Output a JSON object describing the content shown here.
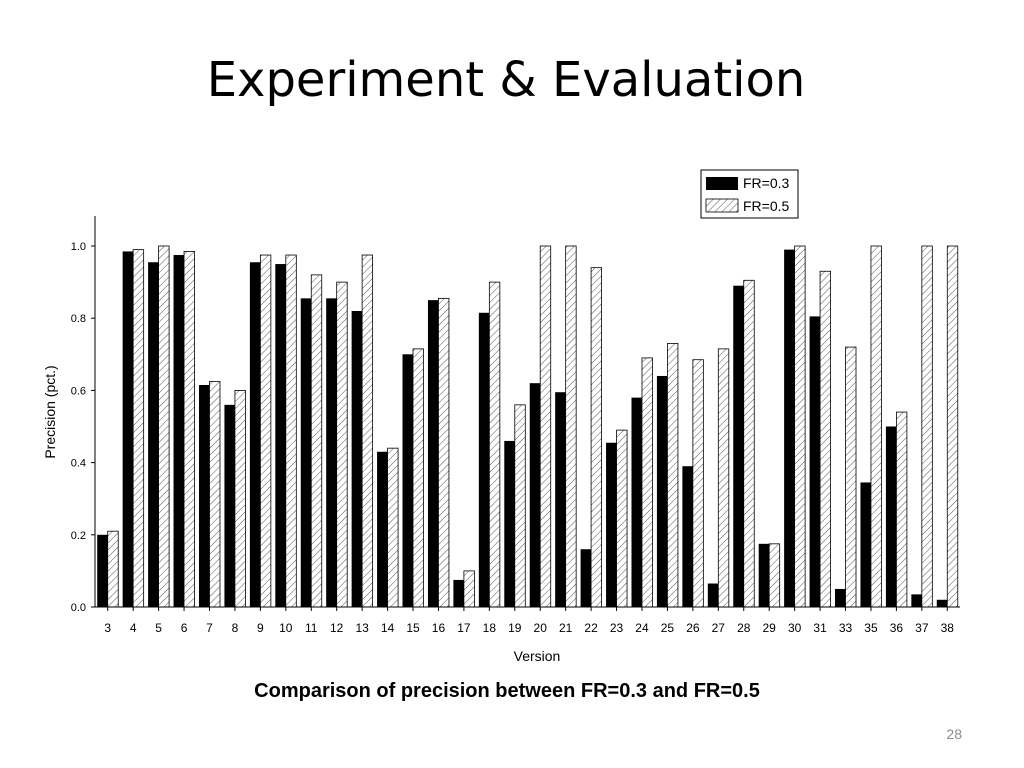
{
  "slide": {
    "title": "Experiment & Evaluation",
    "caption": "Comparison of precision between FR=0.3 and FR=0.5",
    "page_number": "28"
  },
  "chart_data": {
    "type": "bar",
    "xlabel": "Version",
    "ylabel": "Precision (pct.)",
    "ylim": [
      0,
      1.08
    ],
    "yticks": [
      0.0,
      0.2,
      0.4,
      0.6,
      0.8,
      1.0
    ],
    "ytick_labels": [
      "0.0",
      "0.2",
      "0.4",
      "0.6",
      "0.8",
      "1.0"
    ],
    "legend_position": "top-right",
    "categories": [
      "3",
      "4",
      "5",
      "6",
      "7",
      "8",
      "9",
      "10",
      "11",
      "12",
      "13",
      "14",
      "15",
      "16",
      "17",
      "18",
      "19",
      "20",
      "21",
      "22",
      "23",
      "24",
      "25",
      "26",
      "27",
      "28",
      "29",
      "30",
      "31",
      "33",
      "35",
      "36",
      "37",
      "38"
    ],
    "series": [
      {
        "name": "FR=0.3",
        "fill": "solid-black",
        "values": [
          0.2,
          0.985,
          0.955,
          0.975,
          0.615,
          0.56,
          0.955,
          0.95,
          0.855,
          0.855,
          0.82,
          0.43,
          0.7,
          0.85,
          0.075,
          0.815,
          0.46,
          0.62,
          0.595,
          0.16,
          0.455,
          0.58,
          0.64,
          0.39,
          0.065,
          0.89,
          0.175,
          0.99,
          0.805,
          0.05,
          0.345,
          0.5,
          0.035,
          0.02
        ]
      },
      {
        "name": "FR=0.5",
        "fill": "hatched",
        "values": [
          0.21,
          0.99,
          1.0,
          0.985,
          0.625,
          0.6,
          0.975,
          0.975,
          0.92,
          0.9,
          0.975,
          0.44,
          0.715,
          0.855,
          0.1,
          0.9,
          0.56,
          1.0,
          1.0,
          0.94,
          0.49,
          0.69,
          0.73,
          0.685,
          0.715,
          0.905,
          0.175,
          1.0,
          0.93,
          0.72,
          1.0,
          0.54,
          1.0,
          1.0
        ]
      }
    ]
  }
}
